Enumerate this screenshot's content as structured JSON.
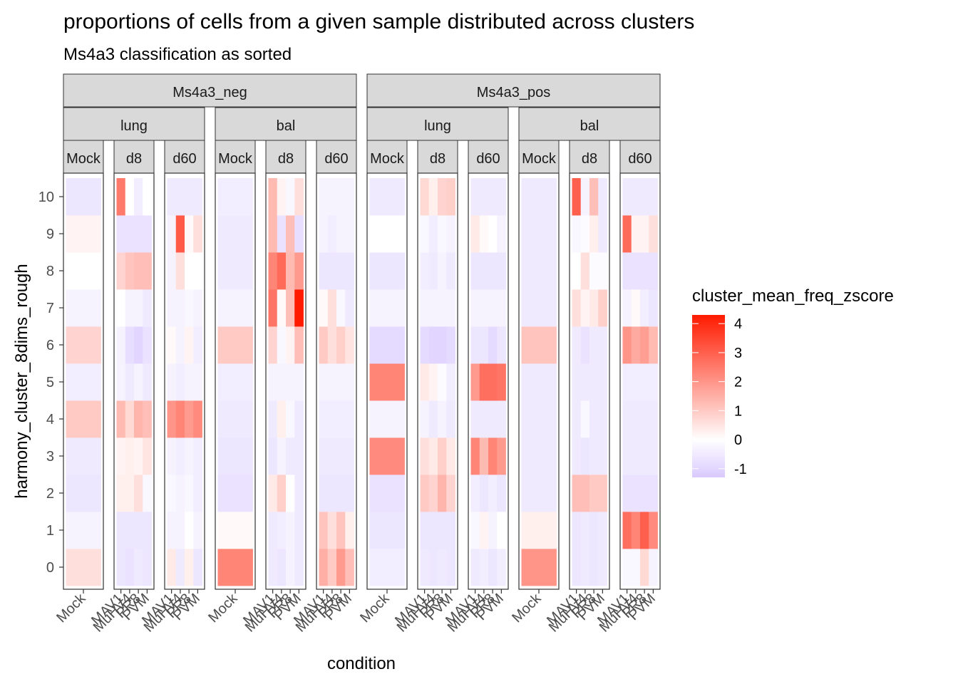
{
  "title": "proportions of cells from a given sample distributed across clusters",
  "subtitle": "Ms4a3 classification as sorted",
  "xlabel": "condition",
  "ylabel": "harmony_cluster_8dims_rough",
  "legend": {
    "title": "cluster_mean_freq_zscore",
    "ticks": [
      "4",
      "3",
      "2",
      "1",
      "0",
      "-1"
    ],
    "tick_values": [
      4,
      3,
      2,
      1,
      0,
      -1
    ],
    "range": [
      -1.3,
      4.3
    ],
    "colors": {
      "low": "#d9c9ff",
      "mid": "#ffffff",
      "high": "#ff1a00"
    }
  },
  "chart_data": {
    "type": "heatmap",
    "title": "proportions of cells from a given sample distributed across clusters",
    "subtitle": "Ms4a3 classification as sorted",
    "xlabel": "condition",
    "ylabel": "harmony_cluster_8dims_rough",
    "y_categories": [
      "0",
      "1",
      "2",
      "3",
      "4",
      "5",
      "6",
      "7",
      "8",
      "9",
      "10"
    ],
    "grid": false,
    "legend_position": "right",
    "facet_levels": {
      "sort": [
        "Ms4a3_neg",
        "Ms4a3_pos"
      ],
      "tissue": [
        "lung",
        "bal"
      ],
      "timepoint": [
        "Mock",
        "d8",
        "d60"
      ]
    },
    "panels": [
      {
        "sort": "Ms4a3_neg",
        "tissue": "lung",
        "timepoint": "Mock",
        "x": [
          "Mock"
        ],
        "values": [
          [
            0.6
          ],
          [
            -0.3
          ],
          [
            -0.6
          ],
          [
            -0.5
          ],
          [
            1.0
          ],
          [
            -0.4
          ],
          [
            0.8
          ],
          [
            -0.3
          ],
          [
            0.0
          ],
          [
            0.2
          ],
          [
            -0.6
          ]
        ]
      },
      {
        "sort": "Ms4a3_neg",
        "tissue": "lung",
        "timepoint": "d8",
        "x": [
          "MAV1",
          "MuHV4",
          "PR8",
          "PVM"
        ],
        "values": [
          [
            -0.6,
            -0.7,
            -0.5,
            -0.6
          ],
          [
            -0.6,
            -0.6,
            -0.6,
            -0.6
          ],
          [
            0.3,
            0.3,
            0.6,
            -0.2
          ],
          [
            0.2,
            0.3,
            0.2,
            0.5
          ],
          [
            1.3,
            0.7,
            1.4,
            1.2
          ],
          [
            -0.3,
            -0.5,
            -0.3,
            -0.5
          ],
          [
            -0.3,
            -0.8,
            -1.0,
            -0.7
          ],
          [
            0.0,
            -0.3,
            -0.3,
            -0.5
          ],
          [
            0.8,
            1.1,
            1.2,
            1.2
          ],
          [
            -0.7,
            -0.7,
            -0.7,
            -0.7
          ],
          [
            2.5,
            0.0,
            -0.4,
            0.0
          ]
        ]
      },
      {
        "sort": "Ms4a3_neg",
        "tissue": "lung",
        "timepoint": "d60",
        "x": [
          "MAV1",
          "MuHV4",
          "PR8",
          "PVM"
        ],
        "values": [
          [
            0.4,
            -0.5,
            0.3,
            -0.6
          ],
          [
            -0.3,
            -0.3,
            0.0,
            -0.3
          ],
          [
            -0.2,
            -0.3,
            -0.2,
            -0.4
          ],
          [
            -0.3,
            -0.4,
            -0.3,
            -0.4
          ],
          [
            2.0,
            2.3,
            1.9,
            2.2
          ],
          [
            -0.3,
            -0.4,
            -0.3,
            -0.3
          ],
          [
            0.1,
            -0.3,
            0.2,
            -0.4
          ],
          [
            -0.3,
            -0.3,
            -0.2,
            -0.3
          ],
          [
            -0.3,
            0.6,
            0.0,
            0.0
          ],
          [
            -0.3,
            3.1,
            0.1,
            0.6
          ],
          [
            -0.5,
            -0.5,
            -0.5,
            -0.5
          ]
        ]
      },
      {
        "sort": "Ms4a3_neg",
        "tissue": "bal",
        "timepoint": "Mock",
        "x": [
          "Mock"
        ],
        "values": [
          [
            2.3
          ],
          [
            0.1
          ],
          [
            -0.7
          ],
          [
            -0.6
          ],
          [
            -0.5
          ],
          [
            -0.4
          ],
          [
            1.0
          ],
          [
            -0.3
          ],
          [
            -0.5
          ],
          [
            -0.5
          ],
          [
            -0.4
          ]
        ]
      },
      {
        "sort": "Ms4a3_neg",
        "tissue": "bal",
        "timepoint": "d8",
        "x": [
          "MAV1",
          "MuHV4",
          "PR8",
          "PVM"
        ],
        "values": [
          [
            -0.5,
            -0.6,
            -0.3,
            -0.5
          ],
          [
            -0.5,
            -0.4,
            -0.3,
            -0.5
          ],
          [
            0.4,
            0.9,
            0.0,
            -0.5
          ],
          [
            -0.6,
            -0.3,
            -0.5,
            -0.5
          ],
          [
            -0.5,
            0.3,
            -0.2,
            -0.5
          ],
          [
            -0.3,
            -0.3,
            -0.3,
            -0.3
          ],
          [
            0.8,
            -0.2,
            0.2,
            1.2
          ],
          [
            2.6,
            0.1,
            1.2,
            4.3
          ],
          [
            2.3,
            2.8,
            1.3,
            1.9
          ],
          [
            1.3,
            -0.7,
            1.2,
            -0.8
          ],
          [
            1.3,
            0.2,
            -0.2,
            0.6
          ]
        ]
      },
      {
        "sort": "Ms4a3_neg",
        "tissue": "bal",
        "timepoint": "d60",
        "x": [
          "MAV1",
          "MuHV4",
          "PR8",
          "PVM"
        ],
        "values": [
          [
            1.5,
            1.0,
            1.9,
            1.2
          ],
          [
            1.1,
            0.6,
            1.1,
            0.3
          ],
          [
            -0.6,
            -0.6,
            -0.6,
            -0.6
          ],
          [
            -0.5,
            -0.5,
            -0.5,
            -0.5
          ],
          [
            -0.4,
            -0.4,
            -0.4,
            -0.4
          ],
          [
            -0.3,
            -0.3,
            -0.3,
            -0.3
          ],
          [
            1.0,
            0.6,
            0.9,
            0.5
          ],
          [
            0.1,
            0.6,
            -0.2,
            -0.5
          ],
          [
            -0.6,
            -0.6,
            -0.6,
            -0.6
          ],
          [
            -0.3,
            -0.4,
            -0.3,
            -0.3
          ],
          [
            -0.3,
            -0.3,
            -0.3,
            -0.3
          ]
        ]
      },
      {
        "sort": "Ms4a3_pos",
        "tissue": "lung",
        "timepoint": "Mock",
        "x": [
          "Mock"
        ],
        "values": [
          [
            -0.4
          ],
          [
            -0.6
          ],
          [
            -0.7
          ],
          [
            2.2
          ],
          [
            -0.3
          ],
          [
            2.3
          ],
          [
            -0.9
          ],
          [
            -0.3
          ],
          [
            -0.6
          ],
          [
            0.0
          ],
          [
            -0.5
          ]
        ]
      },
      {
        "sort": "Ms4a3_pos",
        "tissue": "lung",
        "timepoint": "d8",
        "x": [
          "MAV1",
          "MuHV4",
          "PR8",
          "PVM"
        ],
        "values": [
          [
            -0.5,
            -0.6,
            -0.5,
            -0.6
          ],
          [
            -0.6,
            -0.6,
            -0.6,
            -0.6
          ],
          [
            1.0,
            0.8,
            1.4,
            0.8
          ],
          [
            0.6,
            0.4,
            0.9,
            0.4
          ],
          [
            -0.3,
            -0.5,
            -0.3,
            -0.5
          ],
          [
            0.4,
            0.2,
            -0.1,
            -0.4
          ],
          [
            -0.9,
            -1.0,
            -1.0,
            -0.9
          ],
          [
            -0.3,
            -0.3,
            -0.3,
            -0.3
          ],
          [
            -0.4,
            -0.5,
            -0.3,
            -0.5
          ],
          [
            -0.2,
            -0.4,
            -0.2,
            -0.3
          ],
          [
            0.7,
            0.3,
            0.8,
            0.9
          ]
        ]
      },
      {
        "sort": "Ms4a3_pos",
        "tissue": "lung",
        "timepoint": "d60",
        "x": [
          "MAV1",
          "MuHV4",
          "PR8",
          "PVM"
        ],
        "values": [
          [
            -0.5,
            -0.4,
            -0.6,
            -0.4
          ],
          [
            -0.2,
            0.2,
            -0.3,
            0.0
          ],
          [
            -0.4,
            -0.6,
            -0.4,
            -0.6
          ],
          [
            2.3,
            1.3,
            2.3,
            1.9
          ],
          [
            -0.5,
            -0.5,
            -0.5,
            -0.5
          ],
          [
            1.9,
            2.7,
            2.7,
            2.6
          ],
          [
            -0.6,
            -0.6,
            -0.9,
            -0.6
          ],
          [
            -0.3,
            -0.3,
            -0.3,
            -0.3
          ],
          [
            -0.6,
            -0.6,
            -0.6,
            -0.6
          ],
          [
            0.4,
            0.1,
            0.0,
            -0.3
          ],
          [
            -0.5,
            -0.5,
            -0.5,
            -0.5
          ]
        ]
      },
      {
        "sort": "Ms4a3_pos",
        "tissue": "bal",
        "timepoint": "Mock",
        "x": [
          "Mock"
        ],
        "values": [
          [
            2.0
          ],
          [
            0.3
          ],
          [
            -0.5
          ],
          [
            -0.5
          ],
          [
            -0.5
          ],
          [
            -0.5
          ],
          [
            1.1
          ],
          [
            -0.5
          ],
          [
            -0.5
          ],
          [
            -0.5
          ],
          [
            -0.5
          ]
        ]
      },
      {
        "sort": "Ms4a3_pos",
        "tissue": "bal",
        "timepoint": "d8",
        "x": [
          "MAV1",
          "MuHV4",
          "PR8",
          "PVM"
        ],
        "values": [
          [
            -0.6,
            -0.5,
            -0.6,
            -0.5
          ],
          [
            -0.6,
            -0.5,
            -0.6,
            -0.5
          ],
          [
            1.2,
            1.2,
            1.0,
            1.0
          ],
          [
            -0.5,
            -0.6,
            -0.5,
            -0.5
          ],
          [
            -0.5,
            -0.2,
            -0.5,
            -0.5
          ],
          [
            -0.5,
            -0.5,
            -0.5,
            -0.5
          ],
          [
            -0.5,
            -0.7,
            -0.5,
            -0.5
          ],
          [
            0.6,
            0.2,
            0.4,
            0.9
          ],
          [
            0.0,
            0.6,
            -0.1,
            -0.1
          ],
          [
            -0.2,
            -0.1,
            0.3,
            -0.5
          ],
          [
            3.0,
            -0.3,
            1.2,
            -0.5
          ]
        ]
      },
      {
        "sort": "Ms4a3_pos",
        "tissue": "bal",
        "timepoint": "d60",
        "x": [
          "MAV1",
          "MuHV4",
          "PR8",
          "PVM"
        ],
        "values": [
          [
            -0.2,
            -0.2,
            0.7,
            -0.3
          ],
          [
            2.7,
            2.3,
            3.0,
            2.2
          ],
          [
            -0.7,
            -0.7,
            -0.7,
            -0.7
          ],
          [
            -0.5,
            -0.5,
            -0.5,
            -0.5
          ],
          [
            -0.5,
            -0.5,
            -0.5,
            -0.5
          ],
          [
            -0.4,
            -0.4,
            -0.4,
            -0.4
          ],
          [
            2.0,
            1.6,
            1.8,
            1.3
          ],
          [
            -0.3,
            0.1,
            -0.4,
            -0.6
          ],
          [
            -0.7,
            -0.7,
            -0.7,
            -0.7
          ],
          [
            2.8,
            0.2,
            0.2,
            0.6
          ],
          [
            -0.5,
            -0.5,
            -0.5,
            -0.5
          ]
        ]
      }
    ]
  }
}
